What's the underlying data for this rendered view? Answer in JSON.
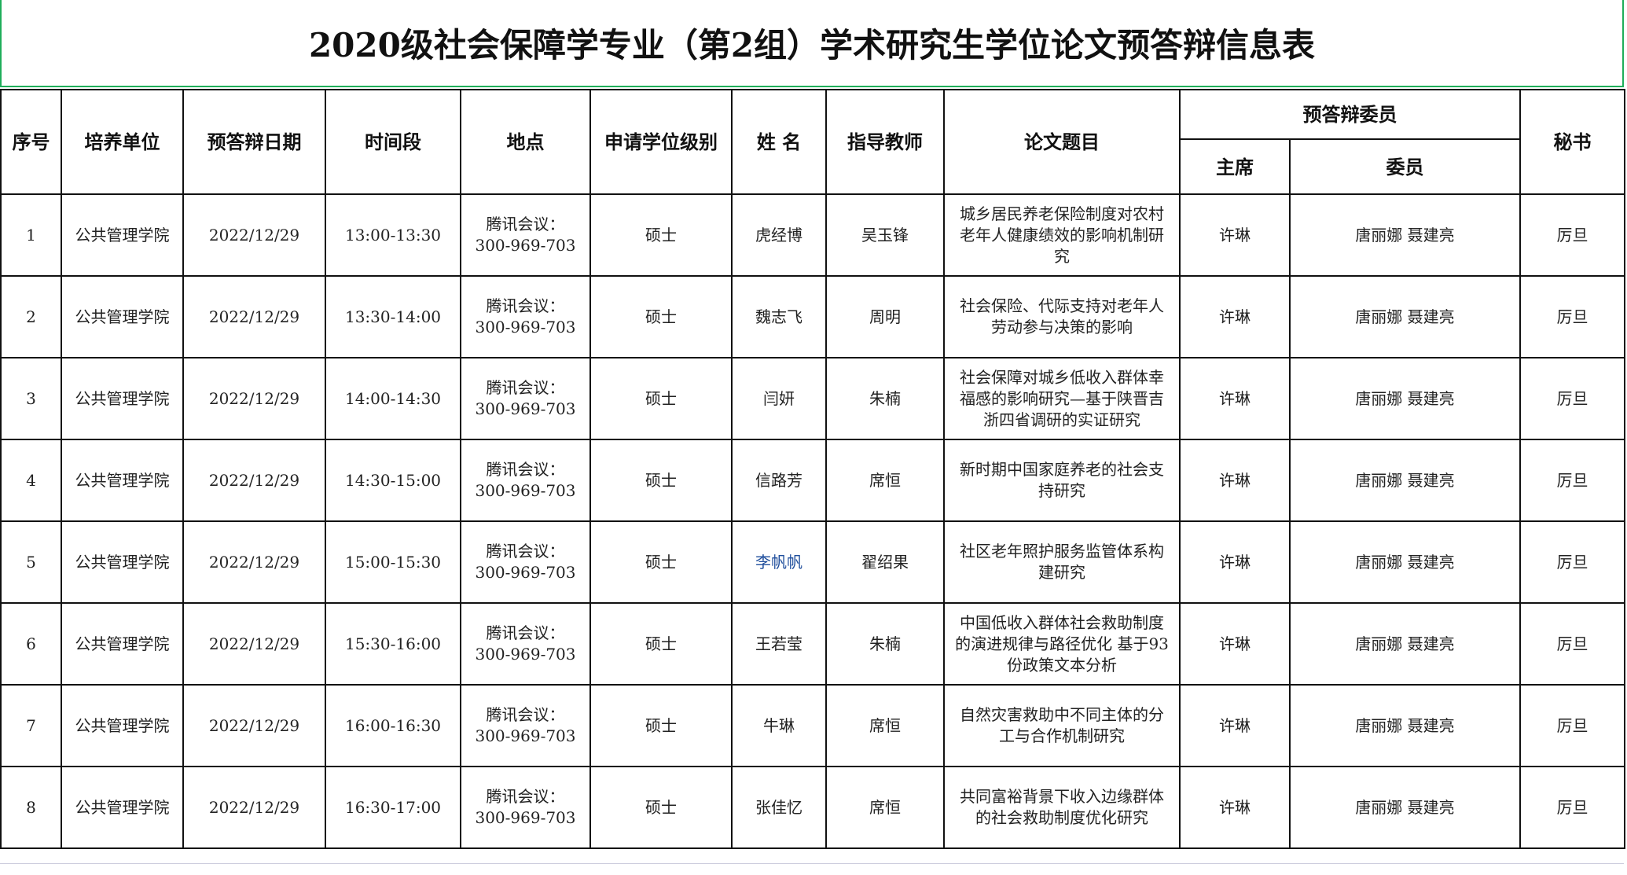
{
  "title": "2020级社会保障学专业（第2组）学术研究生学位论文预答辩信息表",
  "headers": {
    "seq": "序号",
    "unit": "培养单位",
    "date": "预答辩日期",
    "time": "时间段",
    "place": "地点",
    "degree": "申请学位级别",
    "name": "姓 名",
    "advisor": "指导教师",
    "topic": "论文题目",
    "committee": "预答辩委员",
    "chair": "主席",
    "members": "委员",
    "secretary": "秘书"
  },
  "rows": [
    {
      "seq": "1",
      "unit": "公共管理学院",
      "date": "2022/12/29",
      "time": "13:00-13:30",
      "place": "腾讯会议：300-969-703",
      "degree": "硕士",
      "name": "虎经博",
      "advisor": "吴玉锋",
      "topic": "城乡居民养老保险制度对农村老年人健康绩效的影响机制研究",
      "chair": "许琳",
      "members": "唐丽娜  聂建亮",
      "secretary": "厉旦"
    },
    {
      "seq": "2",
      "unit": "公共管理学院",
      "date": "2022/12/29",
      "time": "13:30-14:00",
      "place": "腾讯会议：300-969-703",
      "degree": "硕士",
      "name": "魏志飞",
      "advisor": "周明",
      "topic": "社会保险、代际支持对老年人劳动参与决策的影响",
      "chair": "许琳",
      "members": "唐丽娜  聂建亮",
      "secretary": "厉旦"
    },
    {
      "seq": "3",
      "unit": "公共管理学院",
      "date": "2022/12/29",
      "time": "14:00-14:30",
      "place": "腾讯会议：300-969-703",
      "degree": "硕士",
      "name": "闫妍",
      "advisor": "朱楠",
      "topic": "社会保障对城乡低收入群体幸福感的影响研究—基于陕晋吉浙四省调研的实证研究",
      "chair": "许琳",
      "members": "唐丽娜  聂建亮",
      "secretary": "厉旦"
    },
    {
      "seq": "4",
      "unit": "公共管理学院",
      "date": "2022/12/29",
      "time": "14:30-15:00",
      "place": "腾讯会议：300-969-703",
      "degree": "硕士",
      "name": "信路芳",
      "advisor": "席恒",
      "topic": "新时期中国家庭养老的社会支持研究",
      "chair": "许琳",
      "members": "唐丽娜  聂建亮",
      "secretary": "厉旦"
    },
    {
      "seq": "5",
      "unit": "公共管理学院",
      "date": "2022/12/29",
      "time": "15:00-15:30",
      "place": "腾讯会议：300-969-703",
      "degree": "硕士",
      "name": "李帆帆",
      "advisor": "翟绍果",
      "topic": "社区老年照护服务监管体系构建研究",
      "chair": "许琳",
      "members": "唐丽娜  聂建亮",
      "secretary": "厉旦"
    },
    {
      "seq": "6",
      "unit": "公共管理学院",
      "date": "2022/12/29",
      "time": "15:30-16:00",
      "place": "腾讯会议：300-969-703",
      "degree": "硕士",
      "name": "王若莹",
      "advisor": "朱楠",
      "topic": "中国低收入群体社会救助制度的演进规律与路径优化 基于93份政策文本分析",
      "chair": "许琳",
      "members": "唐丽娜  聂建亮",
      "secretary": "厉旦"
    },
    {
      "seq": "7",
      "unit": "公共管理学院",
      "date": "2022/12/29",
      "time": "16:00-16:30",
      "place": "腾讯会议：300-969-703",
      "degree": "硕士",
      "name": "牛琳",
      "advisor": "席恒",
      "topic": "自然灾害救助中不同主体的分工与合作机制研究",
      "chair": "许琳",
      "members": "唐丽娜  聂建亮",
      "secretary": "厉旦"
    },
    {
      "seq": "8",
      "unit": "公共管理学院",
      "date": "2022/12/29",
      "time": "16:30-17:00",
      "place": "腾讯会议：300-969-703",
      "degree": "硕士",
      "name": "张佳忆",
      "advisor": "席恒",
      "topic": "共同富裕背景下收入边缘群体的社会救助制度优化研究",
      "chair": "许琳",
      "members": "唐丽娜  聂建亮",
      "secretary": "厉旦"
    }
  ],
  "colors": {
    "title_border": "#1fae5a",
    "highlight_name": "#1f4e9c"
  }
}
